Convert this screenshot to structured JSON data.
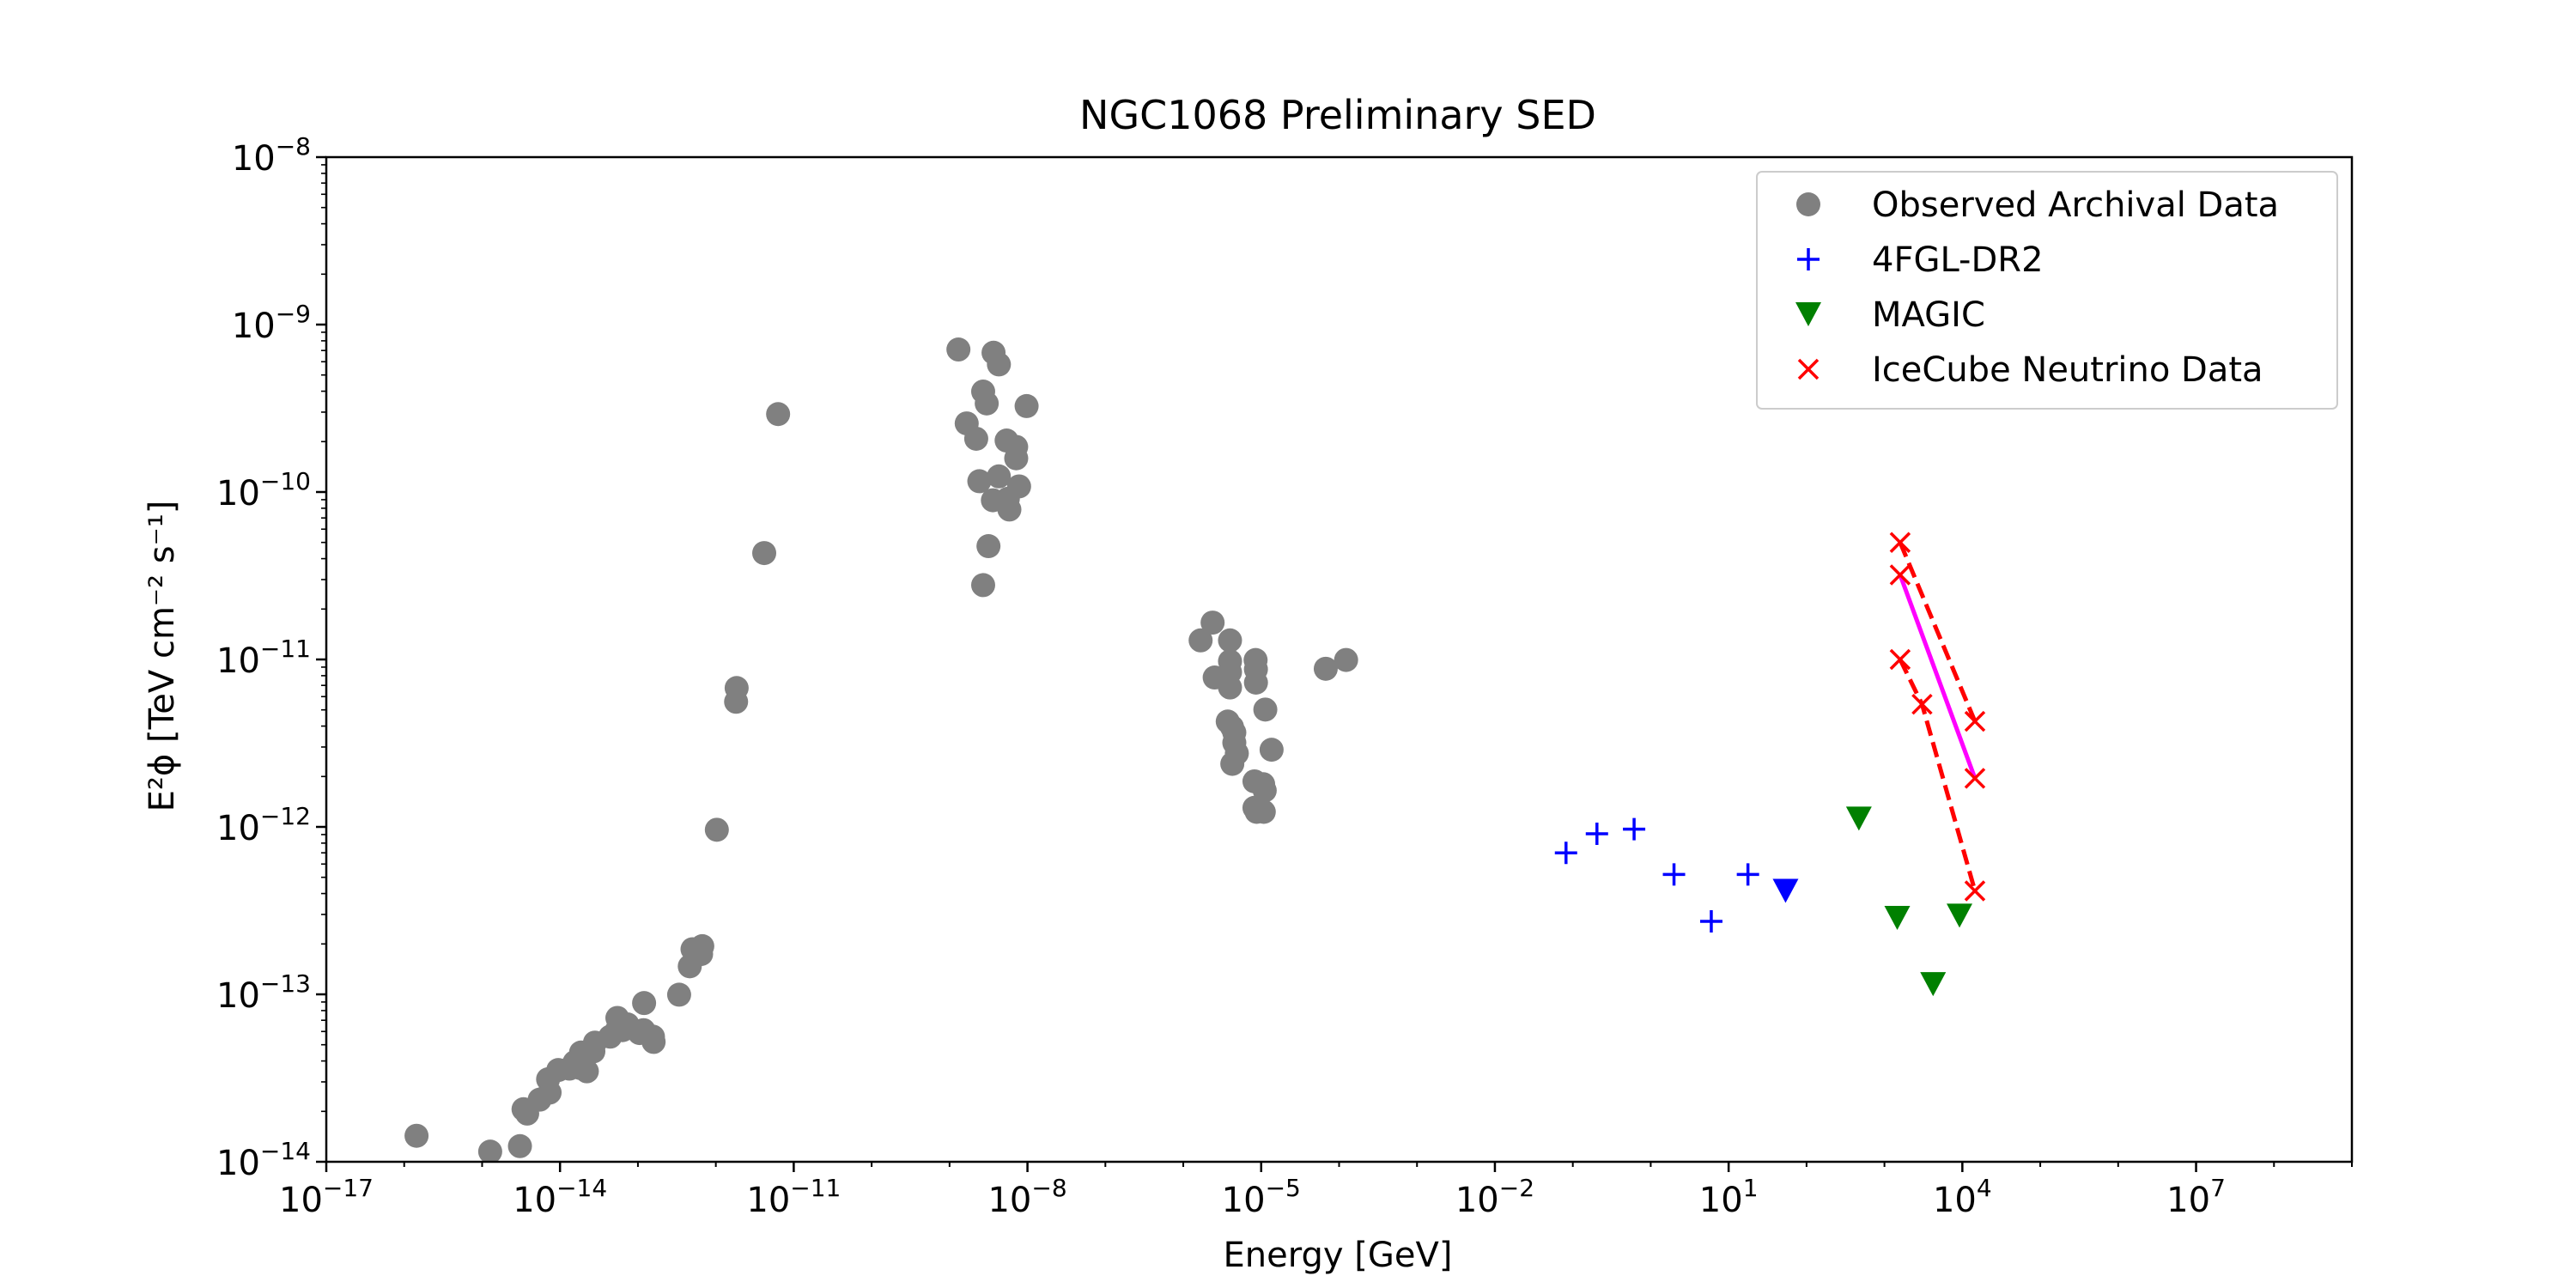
{
  "chart_data": {
    "type": "scatter",
    "title": "NGC1068 Preliminary SED",
    "xlabel": "Energy [GeV]",
    "ylabel": "E²ϕ [TeV cm⁻² s⁻¹]",
    "x_scale": "log",
    "y_scale": "log",
    "xlim": [
      1e-17,
      1000000000.0
    ],
    "ylim": [
      1e-14,
      1e-08
    ],
    "grid": false,
    "legend_position": "top-right",
    "x_ticks": [
      {
        "base": "10",
        "exp": "−17"
      },
      {
        "base": "10",
        "exp": "−14"
      },
      {
        "base": "10",
        "exp": "−11"
      },
      {
        "base": "10",
        "exp": "−8"
      },
      {
        "base": "10",
        "exp": "−5"
      },
      {
        "base": "10",
        "exp": "−2"
      },
      {
        "base": "10",
        "exp": "1"
      },
      {
        "base": "10",
        "exp": "4"
      },
      {
        "base": "10",
        "exp": "7"
      }
    ],
    "y_ticks": [
      {
        "base": "10",
        "exp": "−14"
      },
      {
        "base": "10",
        "exp": "−13"
      },
      {
        "base": "10",
        "exp": "−12"
      },
      {
        "base": "10",
        "exp": "−11"
      },
      {
        "base": "10",
        "exp": "−10"
      },
      {
        "base": "10",
        "exp": "−9"
      },
      {
        "base": "10",
        "exp": "−8"
      }
    ],
    "series": [
      {
        "name": "Observed Archival Data",
        "marker": "circle",
        "color": "#808080",
        "points": [
          [
            1.44e-16,
            1.43e-14
          ],
          [
            1.27e-15,
            1.15e-14
          ],
          [
            3.06e-15,
            1.24e-14
          ],
          [
            3.4e-15,
            2.06e-14
          ],
          [
            3.79e-15,
            1.94e-14
          ],
          [
            5.48e-15,
            2.35e-14
          ],
          [
            7.35e-15,
            2.59e-14
          ],
          [
            7.03e-15,
            3.11e-14
          ],
          [
            9.49e-15,
            3.53e-14
          ],
          [
            1.32e-14,
            3.6e-14
          ],
          [
            1.54e-14,
            3.93e-14
          ],
          [
            1.82e-14,
            3.63e-14
          ],
          [
            1.86e-14,
            4.49e-14
          ],
          [
            2.21e-14,
            3.47e-14
          ],
          [
            2.81e-14,
            5.15e-14
          ],
          [
            2.68e-14,
            4.56e-14
          ],
          [
            4.41e-14,
            5.59e-14
          ],
          [
            5.4e-14,
            6.14e-14
          ],
          [
            5.45e-14,
            7.23e-14
          ],
          [
            6.34e-14,
            6.11e-14
          ],
          [
            7.35e-14,
            6.61e-14
          ],
          [
            1.05e-13,
            5.87e-14
          ],
          [
            1.18e-13,
            6.11e-14
          ],
          [
            1.2e-13,
            8.87e-14
          ],
          [
            1.56e-13,
            5.59e-14
          ],
          [
            1.59e-13,
            5.2e-14
          ],
          [
            3.38e-13,
            9.95e-14
          ],
          [
            4.63e-13,
            1.47e-13
          ],
          [
            5.02e-13,
            1.86e-13
          ],
          [
            6.47e-13,
            1.74e-13
          ],
          [
            6.7e-13,
            1.94e-13
          ],
          [
            1.03e-12,
            9.61e-13
          ],
          [
            1.82e-12,
            5.59e-12
          ],
          [
            1.85e-12,
            6.75e-12
          ],
          [
            4.18e-12,
            4.32e-11
          ],
          [
            6.3e-12,
            2.92e-10
          ],
          [
            1.3e-09,
            7.1e-10
          ],
          [
            1.66e-09,
            2.57e-10
          ],
          [
            2.2e-09,
            2.08e-10
          ],
          [
            2.41e-09,
            1.16e-10
          ],
          [
            2.7e-09,
            3.98e-10
          ],
          [
            3e-09,
            3.38e-10
          ],
          [
            2.7e-09,
            2.78e-11
          ],
          [
            3.16e-09,
            4.75e-11
          ],
          [
            3.6e-09,
            8.93e-11
          ],
          [
            3.67e-09,
            6.79e-10
          ],
          [
            4.3e-09,
            5.78e-10
          ],
          [
            4.29e-09,
            1.24e-10
          ],
          [
            5.4e-09,
            2.03e-10
          ],
          [
            5.86e-09,
            7.86e-11
          ],
          [
            5.6e-09,
            9.11e-11
          ],
          [
            7.16e-09,
            1.86e-10
          ],
          [
            7.17e-09,
            1.59e-10
          ],
          [
            7.81e-09,
            1.08e-10
          ],
          [
            9.75e-09,
            3.26e-10
          ],
          [
            1.67e-06,
            1.3e-11
          ],
          [
            2.38e-06,
            1.66e-11
          ],
          [
            2.53e-06,
            7.8e-12
          ],
          [
            3.98e-06,
            1.3e-11
          ],
          [
            3.98e-06,
            9.75e-12
          ],
          [
            3.98e-06,
            8.4e-12
          ],
          [
            3.98e-06,
            6.8e-12
          ],
          [
            3.72e-06,
            4.26e-12
          ],
          [
            4.22e-06,
            3.95e-12
          ],
          [
            4.52e-06,
            3.66e-12
          ],
          [
            4.52e-06,
            3.18e-12
          ],
          [
            4.87e-06,
            2.75e-12
          ],
          [
            4.26e-06,
            2.38e-12
          ],
          [
            8.48e-06,
            9.92e-12
          ],
          [
            8.56e-06,
            8.73e-12
          ],
          [
            8.57e-06,
            7.27e-12
          ],
          [
            1.13e-05,
            5.02e-12
          ],
          [
            8.2e-06,
            1.87e-12
          ],
          [
            8.2e-06,
            1.3e-12
          ],
          [
            8.75e-06,
            1.23e-12
          ],
          [
            1.06e-05,
            1.8e-12
          ],
          [
            1.11e-05,
            1.65e-12
          ],
          [
            1.08e-05,
            1.23e-12
          ],
          [
            1.36e-05,
            2.89e-12
          ],
          [
            6.74e-05,
            8.8e-12
          ],
          [
            0.000123,
            9.93e-12
          ]
        ]
      },
      {
        "name": "4FGL-DR2",
        "marker": "plus",
        "color": "#0000ff",
        "points": [
          [
            0.0818,
            7e-13
          ],
          [
            0.204,
            9.1e-13
          ],
          [
            0.612,
            9.7e-13
          ],
          [
            1.99,
            5.2e-13
          ],
          [
            5.99,
            2.73e-13
          ],
          [
            17.7,
            5.2e-13
          ]
        ]
      },
      {
        "name": "4FGL-DR2 upper limit",
        "marker": "triangle-down",
        "color": "#0000ff",
        "legend": false,
        "points": [
          [
            53.8,
            4.15e-13
          ]
        ]
      },
      {
        "name": "MAGIC",
        "marker": "triangle-down",
        "color": "#008000",
        "points": [
          [
            470,
            1.12e-12
          ],
          [
            1460,
            2.86e-13
          ],
          [
            4210,
            1.15e-13
          ],
          [
            9190,
            2.95e-13
          ]
        ]
      },
      {
        "name": "IceCube Neutrino Data",
        "marker": "x",
        "color": "#ff0000",
        "points": [
          [
            1590,
            5e-11
          ],
          [
            1590,
            3.2e-11
          ],
          [
            1590,
            1e-11
          ],
          [
            3040,
            5.4e-12
          ],
          [
            14500,
            4.27e-12
          ],
          [
            14500,
            1.95e-12
          ],
          [
            14500,
            4.15e-13
          ]
        ]
      }
    ],
    "lines": [
      {
        "name": "best-fit",
        "style": "solid",
        "color": "#ff00ff",
        "points": [
          [
            1590,
            3.2e-11
          ],
          [
            14500,
            1.95e-12
          ]
        ]
      },
      {
        "name": "upper-band",
        "style": "dashed",
        "color": "#ff0000",
        "points": [
          [
            1590,
            5e-11
          ],
          [
            14500,
            4.27e-12
          ]
        ]
      },
      {
        "name": "lower-band",
        "style": "dashed",
        "color": "#ff0000",
        "points": [
          [
            1590,
            1e-11
          ],
          [
            3040,
            5.4e-12
          ],
          [
            14500,
            4.15e-13
          ]
        ]
      }
    ]
  }
}
